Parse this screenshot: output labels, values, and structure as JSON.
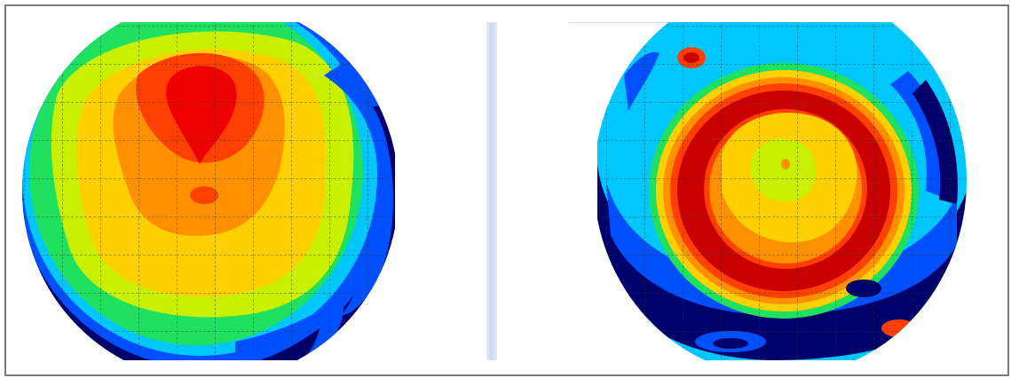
{
  "header": {
    "label": ""
  },
  "maps": [
    {
      "name": "left-contour-map",
      "description_colors": [
        "#00006a",
        "#0050ff",
        "#00c8ff",
        "#20e060",
        "#c8f000",
        "#ffd000",
        "#ff9000",
        "#ff4000",
        "#ee0000"
      ]
    },
    {
      "name": "right-contour-map",
      "description_colors": [
        "#00006a",
        "#0050ff",
        "#00c8ff",
        "#20e060",
        "#c8f000",
        "#ffd000",
        "#ff9000",
        "#ff4000",
        "#c80000"
      ]
    }
  ]
}
